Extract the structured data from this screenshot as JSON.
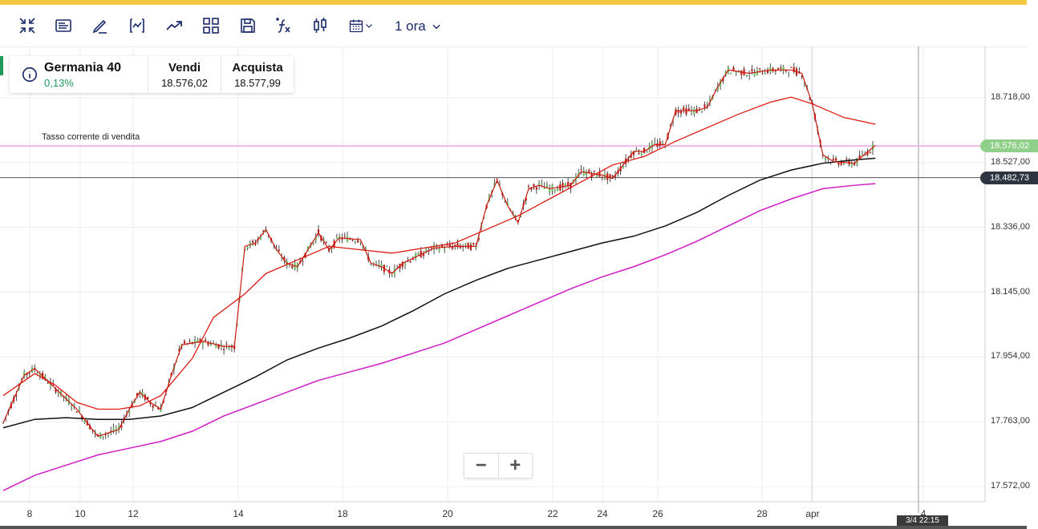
{
  "toolbar": {
    "icons": [
      "collapse-icon",
      "news-icon",
      "draw-icon",
      "indicator-icon",
      "trend-icon",
      "layout-icon",
      "save-icon",
      "function-icon",
      "candlestick-icon",
      "calendar-icon"
    ],
    "interval_label": "1 ora"
  },
  "instrument": {
    "name": "Germania 40",
    "change": "0,13%",
    "sell_label": "Vendi",
    "sell_value": "18.576,02",
    "buy_label": "Acquista",
    "buy_value": "18.577,99"
  },
  "sell_line_caption": "Tasso corrente di vendita",
  "price_axis": [
    "18.718,00",
    "18.527,00",
    "18.336,00",
    "18.145,00",
    "17.954,00",
    "17.763,00",
    "17.572,00"
  ],
  "price_tags": {
    "sell": "18.576,02",
    "cursor": "18.482,73"
  },
  "date_axis": [
    "8",
    "10",
    "12",
    "14",
    "18",
    "20",
    "22",
    "24",
    "26",
    "28",
    "apr",
    "4"
  ],
  "cursor_date": "3/4 22:15",
  "zoom": {
    "minus": "−",
    "plus": "+"
  },
  "colors": {
    "accent": "#1a2a6b",
    "up": "#6dbf6a",
    "down": "#c0201a",
    "ma_fast": "#dd1a12",
    "ma_mid": "#111111",
    "ma_slow": "#d01bc4",
    "sell_line": "#e79be0",
    "change_positive": "#1d9a5a"
  },
  "chart_data": {
    "type": "candlestick",
    "y_range": [
      17530,
      18850
    ],
    "y_ticks": [
      18718,
      18527,
      18336,
      18145,
      17954,
      17763,
      17572
    ],
    "x_ticks": [
      "8",
      "10",
      "12",
      "14",
      "18",
      "20",
      "22",
      "24",
      "26",
      "28",
      "apr",
      "4"
    ],
    "current_sell": 18576.02,
    "cursor_price": 18482.73,
    "ma_fast": [
      [
        0,
        17840
      ],
      [
        3,
        17905
      ],
      [
        5,
        17870
      ],
      [
        7,
        17820
      ],
      [
        9,
        17800
      ],
      [
        11,
        17800
      ],
      [
        13,
        17810
      ],
      [
        15,
        17840
      ],
      [
        18,
        17950
      ],
      [
        20,
        18070
      ],
      [
        23,
        18140
      ],
      [
        25,
        18200
      ],
      [
        28,
        18240
      ],
      [
        31,
        18280
      ],
      [
        34,
        18270
      ],
      [
        37,
        18260
      ],
      [
        40,
        18275
      ],
      [
        43,
        18290
      ],
      [
        46,
        18330
      ],
      [
        49,
        18370
      ],
      [
        52,
        18420
      ],
      [
        55,
        18470
      ],
      [
        58,
        18520
      ],
      [
        61,
        18545
      ],
      [
        64,
        18590
      ],
      [
        67,
        18630
      ],
      [
        70,
        18670
      ],
      [
        73,
        18705
      ],
      [
        75,
        18720
      ],
      [
        77,
        18700
      ],
      [
        80,
        18660
      ],
      [
        83,
        18640
      ]
    ],
    "ma_mid": [
      [
        0,
        17745
      ],
      [
        3,
        17770
      ],
      [
        6,
        17775
      ],
      [
        9,
        17770
      ],
      [
        12,
        17770
      ],
      [
        15,
        17780
      ],
      [
        18,
        17805
      ],
      [
        21,
        17850
      ],
      [
        24,
        17895
      ],
      [
        27,
        17945
      ],
      [
        30,
        17980
      ],
      [
        33,
        18010
      ],
      [
        36,
        18045
      ],
      [
        39,
        18090
      ],
      [
        42,
        18140
      ],
      [
        45,
        18180
      ],
      [
        48,
        18215
      ],
      [
        51,
        18240
      ],
      [
        54,
        18265
      ],
      [
        57,
        18290
      ],
      [
        60,
        18310
      ],
      [
        63,
        18340
      ],
      [
        66,
        18380
      ],
      [
        69,
        18430
      ],
      [
        72,
        18475
      ],
      [
        75,
        18505
      ],
      [
        78,
        18525
      ],
      [
        81,
        18535
      ],
      [
        83,
        18540
      ]
    ],
    "ma_slow": [
      [
        0,
        17560
      ],
      [
        3,
        17605
      ],
      [
        6,
        17635
      ],
      [
        9,
        17665
      ],
      [
        12,
        17685
      ],
      [
        15,
        17705
      ],
      [
        18,
        17735
      ],
      [
        21,
        17780
      ],
      [
        24,
        17815
      ],
      [
        27,
        17850
      ],
      [
        30,
        17885
      ],
      [
        33,
        17910
      ],
      [
        36,
        17935
      ],
      [
        39,
        17965
      ],
      [
        42,
        17995
      ],
      [
        45,
        18035
      ],
      [
        48,
        18075
      ],
      [
        51,
        18115
      ],
      [
        54,
        18155
      ],
      [
        57,
        18190
      ],
      [
        60,
        18220
      ],
      [
        63,
        18255
      ],
      [
        66,
        18295
      ],
      [
        69,
        18340
      ],
      [
        72,
        18385
      ],
      [
        75,
        18420
      ],
      [
        78,
        18450
      ],
      [
        81,
        18460
      ],
      [
        83,
        18465
      ]
    ],
    "price_path": [
      [
        0,
        17760
      ],
      [
        2,
        17900
      ],
      [
        3,
        17920
      ],
      [
        5,
        17860
      ],
      [
        7,
        17800
      ],
      [
        8,
        17760
      ],
      [
        9,
        17720
      ],
      [
        11,
        17740
      ],
      [
        12,
        17800
      ],
      [
        13,
        17850
      ],
      [
        14,
        17820
      ],
      [
        15,
        17800
      ],
      [
        16,
        17900
      ],
      [
        17,
        17990
      ],
      [
        19,
        18000
      ],
      [
        21,
        17985
      ],
      [
        22,
        17985
      ],
      [
        23,
        18280
      ],
      [
        24,
        18290
      ],
      [
        25,
        18330
      ],
      [
        26,
        18270
      ],
      [
        27,
        18230
      ],
      [
        28,
        18220
      ],
      [
        30,
        18320
      ],
      [
        31,
        18270
      ],
      [
        32,
        18305
      ],
      [
        34,
        18300
      ],
      [
        35,
        18230
      ],
      [
        36,
        18220
      ],
      [
        37,
        18200
      ],
      [
        38,
        18230
      ],
      [
        40,
        18260
      ],
      [
        41,
        18275
      ],
      [
        43,
        18280
      ],
      [
        45,
        18280
      ],
      [
        46,
        18400
      ],
      [
        47,
        18475
      ],
      [
        48,
        18400
      ],
      [
        49,
        18350
      ],
      [
        50,
        18450
      ],
      [
        51,
        18460
      ],
      [
        52,
        18450
      ],
      [
        54,
        18460
      ],
      [
        55,
        18500
      ],
      [
        57,
        18490
      ],
      [
        58,
        18480
      ],
      [
        60,
        18560
      ],
      [
        61,
        18560
      ],
      [
        62,
        18580
      ],
      [
        63,
        18580
      ],
      [
        64,
        18680
      ],
      [
        66,
        18680
      ],
      [
        67,
        18690
      ],
      [
        68,
        18750
      ],
      [
        69,
        18800
      ],
      [
        71,
        18790
      ],
      [
        73,
        18800
      ],
      [
        75,
        18800
      ],
      [
        76,
        18790
      ],
      [
        77,
        18700
      ],
      [
        78,
        18550
      ],
      [
        79,
        18530
      ],
      [
        81,
        18525
      ],
      [
        83,
        18578
      ]
    ]
  }
}
